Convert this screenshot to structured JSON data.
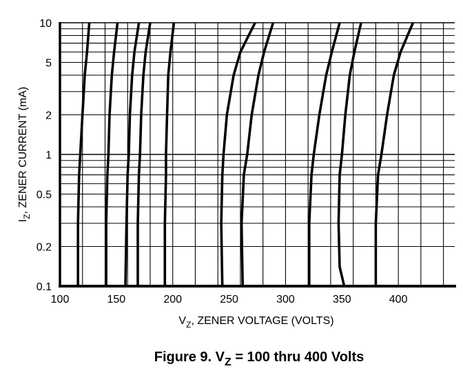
{
  "chart_data": {
    "type": "line",
    "title": "",
    "caption": {
      "prefix": "Figure 9. V",
      "sub": "Z",
      "suffix": " = 100 thru 400 Volts"
    },
    "xlabel": {
      "prefix": "V",
      "sub": "Z",
      "suffix": ", ZENER VOLTAGE (VOLTS)"
    },
    "ylabel": {
      "prefix": "I",
      "sub": "Z",
      "suffix": ", ZENER CURRENT (mA)"
    },
    "xlim": [
      100,
      450
    ],
    "ylim": [
      0.1,
      10
    ],
    "yscale": "log",
    "grid": true,
    "x_ticks": [
      100,
      150,
      200,
      250,
      300,
      350,
      400
    ],
    "y_ticks": [
      0.1,
      0.2,
      0.5,
      1,
      2,
      5,
      10
    ],
    "y_tick_labels": [
      "0.1",
      "0.2",
      "0.5",
      "1",
      "2",
      "5",
      "10"
    ],
    "series": [
      {
        "points": [
          [
            116,
            0.1
          ],
          [
            116,
            0.3
          ],
          [
            117,
            0.7
          ],
          [
            118,
            1
          ],
          [
            120,
            2
          ],
          [
            122,
            4
          ],
          [
            124,
            6
          ],
          [
            126,
            10
          ]
        ]
      },
      {
        "points": [
          [
            141,
            0.1
          ],
          [
            141,
            0.3
          ],
          [
            142,
            0.7
          ],
          [
            143,
            1
          ],
          [
            144,
            2
          ],
          [
            146,
            4
          ],
          [
            148,
            6
          ],
          [
            151,
            10
          ]
        ]
      },
      {
        "points": [
          [
            158,
            0.1
          ],
          [
            159,
            0.3
          ],
          [
            160,
            0.7
          ],
          [
            161,
            1
          ],
          [
            162,
            2
          ],
          [
            164,
            4
          ],
          [
            166,
            6
          ],
          [
            170,
            10
          ]
        ]
      },
      {
        "points": [
          [
            169,
            0.1
          ],
          [
            169,
            0.3
          ],
          [
            170,
            0.7
          ],
          [
            171,
            1
          ],
          [
            172,
            2
          ],
          [
            174,
            4
          ],
          [
            176,
            6
          ],
          [
            180,
            10
          ]
        ]
      },
      {
        "points": [
          [
            193,
            0.1
          ],
          [
            193,
            0.3
          ],
          [
            194,
            0.7
          ],
          [
            194,
            1
          ],
          [
            195,
            2
          ],
          [
            196,
            4
          ],
          [
            198,
            6
          ],
          [
            201,
            10
          ]
        ]
      },
      {
        "points": [
          [
            244,
            0.1
          ],
          [
            243,
            0.3
          ],
          [
            244,
            0.7
          ],
          [
            245,
            1
          ],
          [
            248,
            2
          ],
          [
            254,
            4
          ],
          [
            260,
            6
          ],
          [
            273,
            10
          ]
        ]
      },
      {
        "points": [
          [
            262,
            0.1
          ],
          [
            261,
            0.3
          ],
          [
            263,
            0.7
          ],
          [
            266,
            1
          ],
          [
            270,
            2
          ],
          [
            276,
            4
          ],
          [
            281,
            6
          ],
          [
            289,
            10
          ]
        ]
      },
      {
        "points": [
          [
            352,
            0.1
          ],
          [
            348,
            0.14
          ],
          [
            347,
            0.3
          ],
          [
            348,
            0.7
          ],
          [
            350,
            1
          ],
          [
            353,
            2
          ],
          [
            357,
            4
          ],
          [
            361,
            6
          ],
          [
            367,
            10
          ]
        ]
      },
      {
        "points": [
          [
            321,
            0.1
          ],
          [
            321,
            0.3
          ],
          [
            323,
            0.7
          ],
          [
            325,
            1
          ],
          [
            330,
            2
          ],
          [
            336,
            4
          ],
          [
            341,
            6
          ],
          [
            348,
            10
          ]
        ]
      },
      {
        "points": [
          [
            380,
            0.1
          ],
          [
            380,
            0.3
          ],
          [
            382,
            0.7
          ],
          [
            385,
            1
          ],
          [
            390,
            2
          ],
          [
            396,
            4
          ],
          [
            402,
            6
          ],
          [
            413,
            10
          ]
        ]
      }
    ]
  }
}
